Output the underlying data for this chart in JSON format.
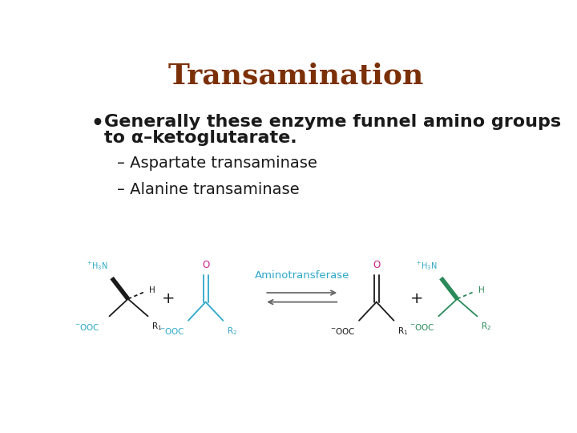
{
  "title": "Transamination",
  "title_color": "#7B3008",
  "title_fontsize": 26,
  "bullet_line1": "Generally these enzyme funnel amino groups",
  "bullet_line2": "to α–ketoglutarate.",
  "bullet_fontsize": 16,
  "sub1": "– Aspartate transaminase",
  "sub2": "– Alanine transaminase",
  "sub_fontsize": 14,
  "teal": "#2da8c8",
  "teal_dark": "#1a9090",
  "magenta": "#cc2288",
  "green": "#2a8a5a",
  "black": "#1a1a1a",
  "bg": "#ffffff",
  "amino_color": "#2da8c8"
}
